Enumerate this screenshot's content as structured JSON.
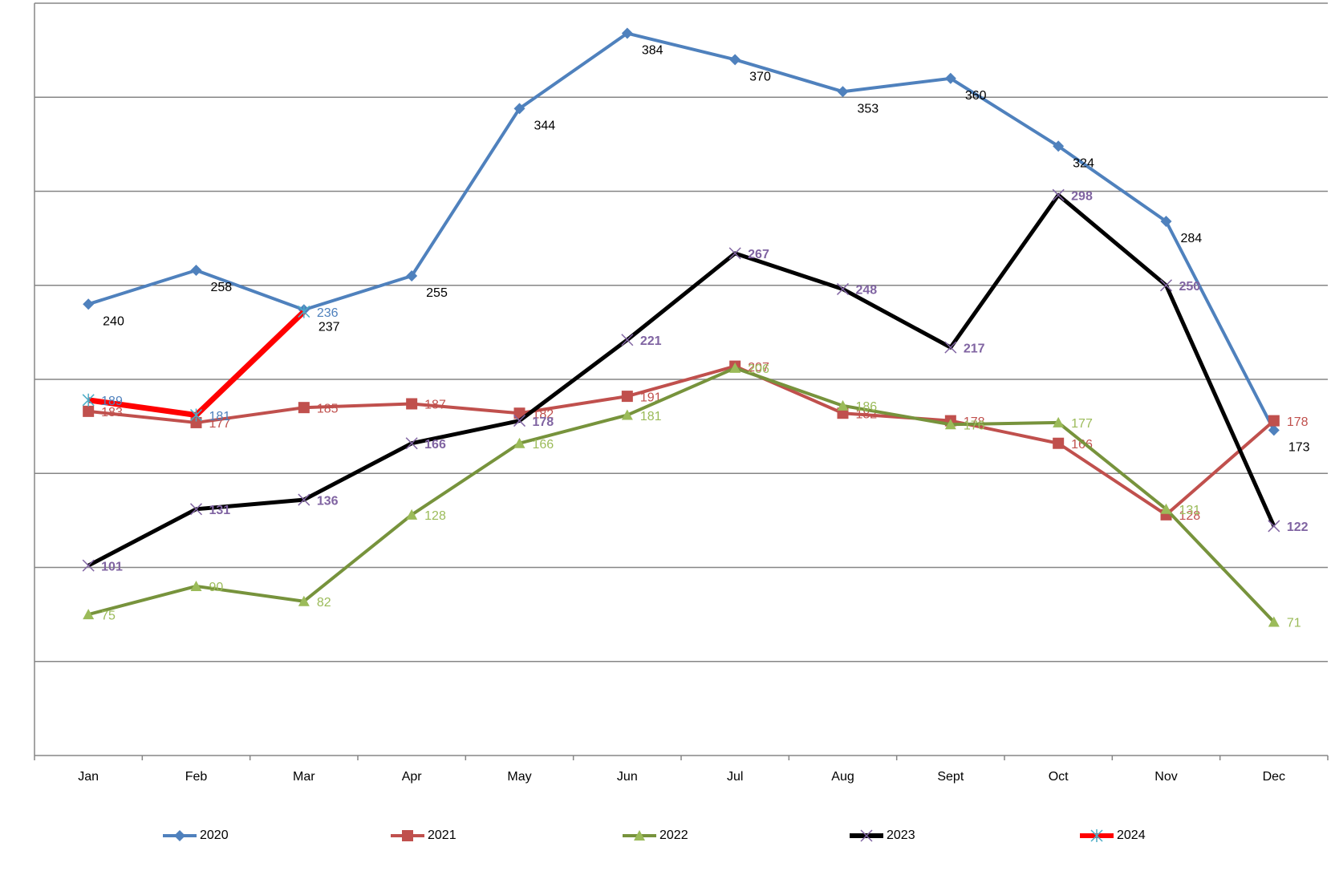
{
  "chart_data": {
    "type": "line",
    "categories": [
      "Jan",
      "Feb",
      "Mar",
      "Apr",
      "May",
      "Jun",
      "Jul",
      "Aug",
      "Sept",
      "Oct",
      "Nov",
      "Dec"
    ],
    "ylim": [
      0,
      400
    ],
    "yticks": [
      0,
      50,
      100,
      150,
      200,
      250,
      300,
      350,
      400
    ],
    "grid": true,
    "legend": "bottom",
    "series": [
      {
        "name": "2020",
        "color": "#4f81bd",
        "label_color": "#000000",
        "marker": "diamond",
        "values": [
          240,
          258,
          237,
          255,
          344,
          384,
          370,
          353,
          360,
          324,
          284,
          173
        ]
      },
      {
        "name": "2021",
        "color": "#c0504d",
        "label_color": "#c0504d",
        "marker": "square",
        "values": [
          183,
          177,
          185,
          187,
          182,
          191,
          207,
          182,
          178,
          166,
          128,
          178
        ]
      },
      {
        "name": "2022",
        "color": "#77933c",
        "label_color": "#9bbb59",
        "marker": "triangle",
        "values": [
          75,
          90,
          82,
          128,
          166,
          181,
          206,
          186,
          176,
          177,
          131,
          71
        ]
      },
      {
        "name": "2023",
        "color": "#000000",
        "label_color": "#8064a2",
        "marker": "x",
        "values": [
          101,
          131,
          136,
          166,
          178,
          221,
          267,
          248,
          217,
          298,
          250,
          122
        ]
      },
      {
        "name": "2024",
        "color": "#ff0000",
        "label_color": "#4f81bd",
        "marker": "star",
        "values": [
          189,
          181,
          236,
          null,
          null,
          null,
          null,
          null,
          null,
          null,
          null,
          null
        ]
      }
    ]
  }
}
